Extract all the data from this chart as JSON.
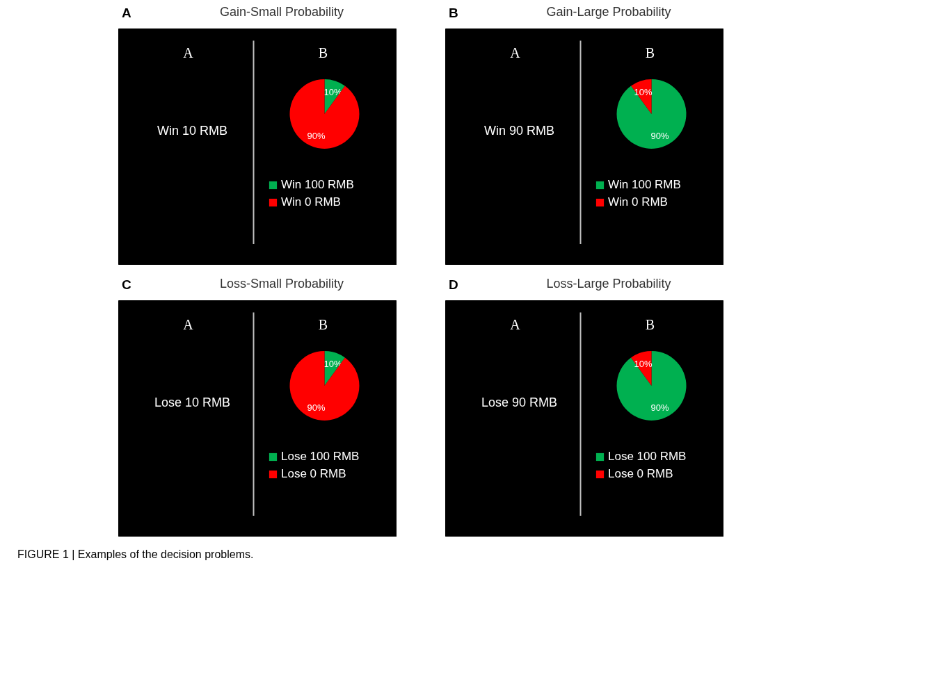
{
  "chart_data": [
    {
      "type": "pie",
      "title": "Gain-Small Probability",
      "categories": [
        "Win 100 RMB",
        "Win 0 RMB"
      ],
      "values": [
        10,
        90
      ],
      "colors": [
        "#00b050",
        "#ff0000"
      ],
      "value_labels": [
        "10%",
        "90%"
      ],
      "legend": "bottom",
      "annotations": [
        "A",
        "A",
        "B",
        "Win 10 RMB"
      ]
    },
    {
      "type": "pie",
      "title": "Gain-Large Probability",
      "categories": [
        "Win 100 RMB",
        "Win 0 RMB"
      ],
      "values": [
        90,
        10
      ],
      "colors": [
        "#00b050",
        "#ff0000"
      ],
      "value_labels": [
        "90%",
        "10%"
      ],
      "legend": "bottom",
      "annotations": [
        "B",
        "A",
        "B",
        "Win 90 RMB"
      ]
    },
    {
      "type": "pie",
      "title": "Loss-Small Probability",
      "categories": [
        "Lose 100 RMB",
        "Lose 0 RMB"
      ],
      "values": [
        10,
        90
      ],
      "colors": [
        "#00b050",
        "#ff0000"
      ],
      "value_labels": [
        "10%",
        "90%"
      ],
      "legend": "bottom",
      "annotations": [
        "C",
        "A",
        "B",
        "Lose 10 RMB"
      ]
    },
    {
      "type": "pie",
      "title": "Loss-Large Probability",
      "categories": [
        "Lose 100 RMB",
        "Lose 0 RMB"
      ],
      "values": [
        90,
        10
      ],
      "colors": [
        "#00b050",
        "#ff0000"
      ],
      "value_labels": [
        "90%",
        "10%"
      ],
      "legend": "bottom",
      "annotations": [
        "D",
        "A",
        "B",
        "Lose 90 RMB",
        "FIGURE 1 | Examples of the decision problems."
      ]
    }
  ]
}
